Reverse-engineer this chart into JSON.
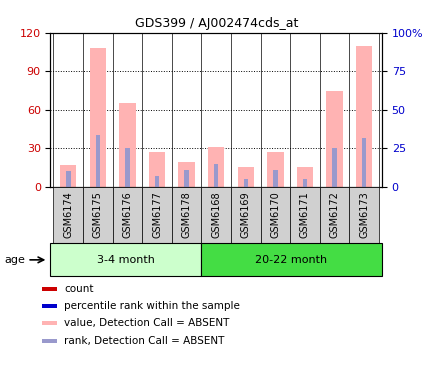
{
  "title": "GDS399 / AJ002474cds_at",
  "samples": [
    "GSM6174",
    "GSM6175",
    "GSM6176",
    "GSM6177",
    "GSM6178",
    "GSM6168",
    "GSM6169",
    "GSM6170",
    "GSM6171",
    "GSM6172",
    "GSM6173"
  ],
  "groups": [
    "3-4 month",
    "20-22 month"
  ],
  "group1_count": 5,
  "group2_count": 6,
  "pink_values": [
    17,
    108,
    65,
    27,
    19,
    31,
    15,
    27,
    15,
    75,
    110
  ],
  "blue_rank_values": [
    12,
    40,
    30,
    8,
    13,
    18,
    6,
    13,
    6,
    30,
    38
  ],
  "left_ylim": [
    0,
    120
  ],
  "right_ylim": [
    0,
    100
  ],
  "left_yticks": [
    0,
    30,
    60,
    90,
    120
  ],
  "right_yticks": [
    0,
    25,
    50,
    75,
    100
  ],
  "right_yticklabels": [
    "0",
    "25",
    "50",
    "75",
    "100%"
  ],
  "left_color": "#cc0000",
  "right_color": "#0000cc",
  "pink_color": "#ffb3b3",
  "blue_color": "#9999cc",
  "group1_color": "#ccffcc",
  "group2_color": "#44dd44",
  "tick_box_color": "#d0d0d0",
  "age_label": "age",
  "legend_items": [
    {
      "color": "#cc0000",
      "label": "count"
    },
    {
      "color": "#0000cc",
      "label": "percentile rank within the sample"
    },
    {
      "color": "#ffb3b3",
      "label": "value, Detection Call = ABSENT"
    },
    {
      "color": "#9999cc",
      "label": "rank, Detection Call = ABSENT"
    }
  ],
  "bar_width": 0.55,
  "figsize": [
    4.39,
    3.66
  ],
  "dpi": 100
}
